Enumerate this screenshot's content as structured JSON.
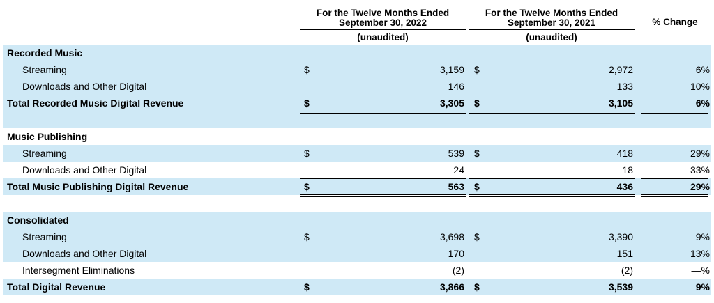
{
  "header": {
    "col2022_line1": "For the Twelve Months Ended",
    "col2022_line2": "September 30, 2022",
    "col2022_sub": "(unaudited)",
    "col2021_line1": "For the Twelve Months Ended",
    "col2021_line2": "September 30, 2021",
    "col2021_sub": "(unaudited)",
    "pct_change": "% Change"
  },
  "sections": [
    {
      "title": "Recorded Music",
      "rows": [
        {
          "label": "Streaming",
          "d1": "$",
          "v2022": "3,159",
          "d2": "$",
          "v2021": "2,972",
          "pct": "6%"
        },
        {
          "label": "Downloads and Other Digital",
          "d1": "",
          "v2022": "146",
          "d2": "",
          "v2021": "133",
          "pct": "10%"
        }
      ],
      "total": {
        "label": "Total Recorded Music Digital Revenue",
        "d1": "$",
        "v2022": "3,305",
        "d2": "$",
        "v2021": "3,105",
        "pct": "6%"
      }
    },
    {
      "title": "Music Publishing",
      "rows": [
        {
          "label": "Streaming",
          "d1": "$",
          "v2022": "539",
          "d2": "$",
          "v2021": "418",
          "pct": "29%"
        },
        {
          "label": "Downloads and Other Digital",
          "d1": "",
          "v2022": "24",
          "d2": "",
          "v2021": "18",
          "pct": "33%"
        }
      ],
      "total": {
        "label": "Total Music Publishing Digital Revenue",
        "d1": "$",
        "v2022": "563",
        "d2": "$",
        "v2021": "436",
        "pct": "29%"
      }
    },
    {
      "title": "Consolidated",
      "rows": [
        {
          "label": "Streaming",
          "d1": "$",
          "v2022": "3,698",
          "d2": "$",
          "v2021": "3,390",
          "pct": "9%"
        },
        {
          "label": "Downloads and Other Digital",
          "d1": "",
          "v2022": "170",
          "d2": "",
          "v2021": "151",
          "pct": "13%"
        },
        {
          "label": "Intersegment Eliminations",
          "d1": "",
          "v2022": "(2)",
          "d2": "",
          "v2021": "(2)",
          "pct": "—%"
        }
      ],
      "total": {
        "label": "Total Digital Revenue",
        "d1": "$",
        "v2022": "3,866",
        "d2": "$",
        "v2021": "3,539",
        "pct": "9%"
      }
    }
  ],
  "colors": {
    "row_highlight": "#cfe9f6",
    "text": "#000000"
  }
}
